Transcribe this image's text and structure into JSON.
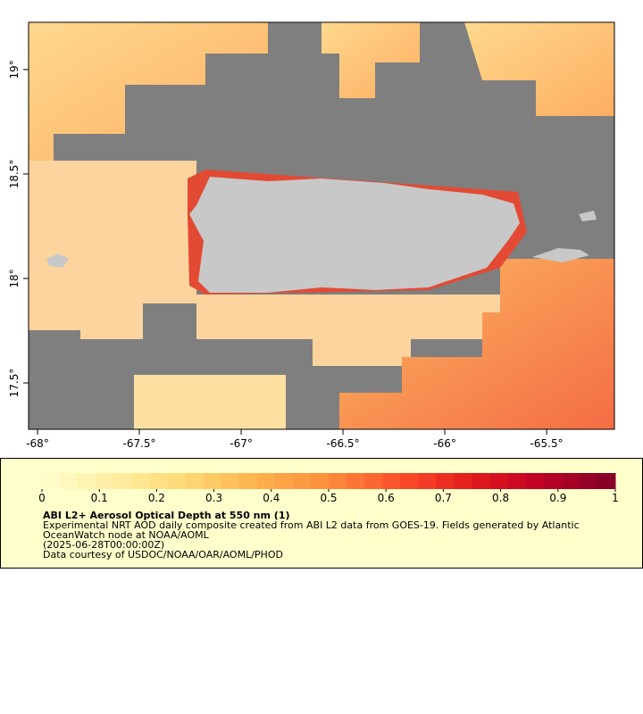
{
  "map": {
    "xlim": [
      -68.044,
      -65.167
    ],
    "xticks": [
      {
        "value": -68,
        "label": "-68°"
      },
      {
        "value": -67.5,
        "label": "-67.5°"
      },
      {
        "value": -67,
        "label": "-67°"
      },
      {
        "value": -66.5,
        "label": "-66.5°"
      },
      {
        "value": -66,
        "label": "-66°"
      },
      {
        "value": -65.5,
        "label": "-65.5°"
      }
    ],
    "ylim": [
      17.278,
      19.226
    ],
    "yticks": [
      {
        "value": 17.5,
        "label": "17.5°"
      },
      {
        "value": 18,
        "label": "18°"
      },
      {
        "value": 18.5,
        "label": "18.5°"
      },
      {
        "value": 19,
        "label": "19°"
      }
    ]
  },
  "legend": {
    "range": [
      0,
      1
    ],
    "ticks": [
      0,
      0.1,
      0.2,
      0.3,
      0.4,
      0.5,
      0.6,
      0.7,
      0.8,
      0.9,
      1
    ],
    "colors": [
      "#ffffcc",
      "#ffeda0",
      "#fed976",
      "#feb24c",
      "#fd8d3c",
      "#fc4e2a",
      "#e31a1c",
      "#bd0026",
      "#800026"
    ],
    "title": "ABI L2+ Aerosol Optical Depth at 550 nm (1)",
    "lines": [
      "Experimental NRT AOD daily composite created from ABI L2 data from GOES-19. Fields generated by Atlantic",
      "OceanWatch node at NOAA/AOML",
      "(2025-06-28T00:00:00Z)",
      "Data courtesy of USDOC/NOAA/OAR/AOML/PHOD"
    ]
  }
}
